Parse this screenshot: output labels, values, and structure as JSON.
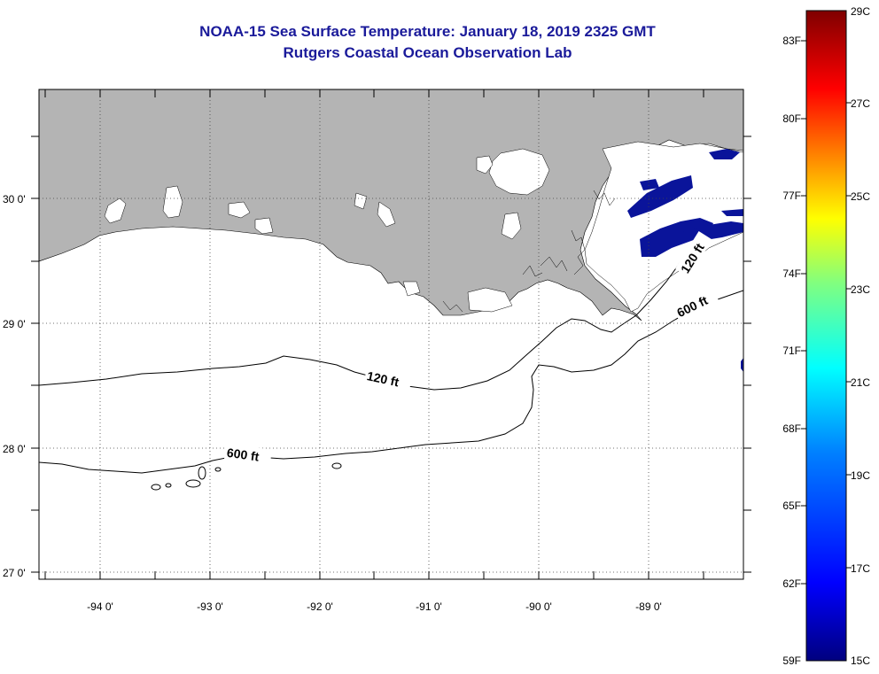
{
  "header": {
    "title_line1": "NOAA-15 Sea Surface Temperature:  January 18, 2019 2325 GMT",
    "title_line2": "Rutgers Coastal Ocean Observation Lab"
  },
  "map": {
    "lon_labels": [
      "-94 0'",
      "-93 0'",
      "-92 0'",
      "-91 0'",
      "-90 0'",
      "-89 0'"
    ],
    "lat_labels": [
      "30 0'",
      "29 0'",
      "28 0'",
      "27 0'"
    ],
    "contour_labels": {
      "isobath_120_west": "120 ft",
      "isobath_120_east": "120 ft",
      "isobath_600_west": "600 ft",
      "isobath_600_east": "600 ft"
    },
    "colors": {
      "land": "#b4b4b4",
      "cloud_mask": "#ffffff",
      "cold_water": "#0a149a"
    }
  },
  "colorbar": {
    "fahrenheit_labels": [
      "83F",
      "80F",
      "77F",
      "74F",
      "71F",
      "68F",
      "65F",
      "62F",
      "59F"
    ],
    "celsius_labels": [
      "29C",
      "27C",
      "25C",
      "23C",
      "21C",
      "19C",
      "17C",
      "15C"
    ],
    "range_celsius": [
      15,
      29
    ],
    "range_fahrenheit": [
      59,
      84.2
    ]
  }
}
